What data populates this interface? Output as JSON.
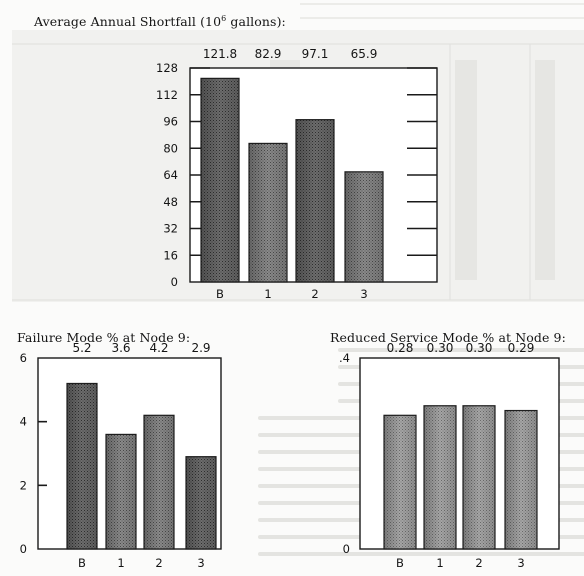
{
  "chart_data": [
    {
      "type": "bar",
      "title": "Average Annual Shortfall (10",
      "title_sup": "6",
      "title_tail": " gallons):",
      "categories": [
        "B",
        "1",
        "2",
        "3"
      ],
      "values": [
        121.8,
        82.9,
        97.1,
        65.9
      ],
      "data_labels": [
        "121.8",
        "82.9",
        "97.1",
        "65.9"
      ],
      "yticks": [
        0,
        16,
        32,
        48,
        64,
        80,
        96,
        112,
        128
      ],
      "ytick_labels": [
        "0",
        "16",
        "32",
        "48",
        "64",
        "80",
        "96",
        "112",
        "128"
      ],
      "ylim": [
        0,
        128
      ],
      "xlabel": "",
      "ylabel": "",
      "grid": false
    },
    {
      "type": "bar",
      "title": "Failure Mode % at Node 9:",
      "categories": [
        "B",
        "1",
        "2",
        "3"
      ],
      "values": [
        5.2,
        3.6,
        4.2,
        2.9
      ],
      "data_labels": [
        "5.2",
        "3.6",
        "4.2",
        "2.9"
      ],
      "yticks": [
        0,
        2,
        4,
        6
      ],
      "ytick_labels": [
        "0",
        "2",
        "4",
        "6"
      ],
      "ylim": [
        0,
        6
      ],
      "xlabel": "",
      "ylabel": "",
      "grid": false
    },
    {
      "type": "bar",
      "title": "Reduced Service Mode % at Node 9:",
      "categories": [
        "B",
        "1",
        "2",
        "3"
      ],
      "values": [
        0.28,
        0.3,
        0.3,
        0.29
      ],
      "data_labels": [
        "0.28",
        "0.30",
        "0.30",
        "0.29"
      ],
      "yticks": [
        0,
        0.4
      ],
      "ytick_labels": [
        "0",
        ".4"
      ],
      "ylim": [
        0,
        0.4
      ],
      "xlabel": "",
      "ylabel": "",
      "grid": false
    }
  ]
}
